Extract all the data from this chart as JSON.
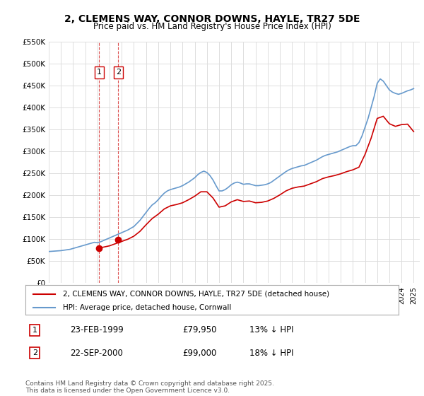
{
  "title": "2, CLEMENS WAY, CONNOR DOWNS, HAYLE, TR27 5DE",
  "subtitle": "Price paid vs. HM Land Registry's House Price Index (HPI)",
  "legend_line1": "2, CLEMENS WAY, CONNOR DOWNS, HAYLE, TR27 5DE (detached house)",
  "legend_line2": "HPI: Average price, detached house, Cornwall",
  "footer": "Contains HM Land Registry data © Crown copyright and database right 2025.\nThis data is licensed under the Open Government Licence v3.0.",
  "transactions": [
    {
      "num": 1,
      "date": "23-FEB-1999",
      "price": 79950,
      "hpi_rel": "13% ↓ HPI"
    },
    {
      "num": 2,
      "date": "22-SEP-2000",
      "price": 99000,
      "hpi_rel": "18% ↓ HPI"
    }
  ],
  "property_color": "#cc0000",
  "hpi_color": "#6699cc",
  "transaction_marker_color": "#cc0000",
  "vline_color": "#cc0000",
  "background_color": "#ffffff",
  "grid_color": "#dddddd",
  "ylim": [
    0,
    550000
  ],
  "yticks": [
    0,
    50000,
    100000,
    150000,
    200000,
    250000,
    300000,
    350000,
    400000,
    450000,
    500000,
    550000
  ],
  "ytick_labels": [
    "£0",
    "£50K",
    "£100K",
    "£150K",
    "£200K",
    "£250K",
    "£300K",
    "£350K",
    "£400K",
    "£450K",
    "£500K",
    "£550K"
  ],
  "hpi_data": {
    "years": [
      1995.0,
      1995.25,
      1995.5,
      1995.75,
      1996.0,
      1996.25,
      1996.5,
      1996.75,
      1997.0,
      1997.25,
      1997.5,
      1997.75,
      1998.0,
      1998.25,
      1998.5,
      1998.75,
      1999.0,
      1999.25,
      1999.5,
      1999.75,
      2000.0,
      2000.25,
      2000.5,
      2000.75,
      2001.0,
      2001.25,
      2001.5,
      2001.75,
      2002.0,
      2002.25,
      2002.5,
      2002.75,
      2003.0,
      2003.25,
      2003.5,
      2003.75,
      2004.0,
      2004.25,
      2004.5,
      2004.75,
      2005.0,
      2005.25,
      2005.5,
      2005.75,
      2006.0,
      2006.25,
      2006.5,
      2006.75,
      2007.0,
      2007.25,
      2007.5,
      2007.75,
      2008.0,
      2008.25,
      2008.5,
      2008.75,
      2009.0,
      2009.25,
      2009.5,
      2009.75,
      2010.0,
      2010.25,
      2010.5,
      2010.75,
      2011.0,
      2011.25,
      2011.5,
      2011.75,
      2012.0,
      2012.25,
      2012.5,
      2012.75,
      2013.0,
      2013.25,
      2013.5,
      2013.75,
      2014.0,
      2014.25,
      2014.5,
      2014.75,
      2015.0,
      2015.25,
      2015.5,
      2015.75,
      2016.0,
      2016.25,
      2016.5,
      2016.75,
      2017.0,
      2017.25,
      2017.5,
      2017.75,
      2018.0,
      2018.25,
      2018.5,
      2018.75,
      2019.0,
      2019.25,
      2019.5,
      2019.75,
      2020.0,
      2020.25,
      2020.5,
      2020.75,
      2021.0,
      2021.25,
      2021.5,
      2021.75,
      2022.0,
      2022.25,
      2022.5,
      2022.75,
      2023.0,
      2023.25,
      2023.5,
      2023.75,
      2024.0,
      2024.25,
      2024.5,
      2024.75,
      2025.0
    ],
    "values": [
      72000,
      72500,
      73000,
      73500,
      74000,
      75000,
      76000,
      77000,
      79000,
      81000,
      83000,
      85000,
      87000,
      89000,
      91000,
      93000,
      92000,
      94000,
      97000,
      100000,
      103000,
      106000,
      109000,
      112000,
      115000,
      118000,
      121000,
      125000,
      129000,
      136000,
      143000,
      152000,
      161000,
      170000,
      178000,
      183000,
      190000,
      198000,
      205000,
      210000,
      213000,
      215000,
      217000,
      219000,
      222000,
      226000,
      230000,
      235000,
      240000,
      247000,
      252000,
      255000,
      252000,
      245000,
      235000,
      222000,
      210000,
      210000,
      213000,
      218000,
      224000,
      228000,
      230000,
      228000,
      225000,
      226000,
      226000,
      224000,
      222000,
      222000,
      223000,
      224000,
      226000,
      229000,
      234000,
      239000,
      244000,
      249000,
      254000,
      258000,
      261000,
      263000,
      265000,
      267000,
      268000,
      271000,
      274000,
      277000,
      280000,
      284000,
      288000,
      291000,
      293000,
      295000,
      297000,
      299000,
      302000,
      305000,
      308000,
      311000,
      313000,
      313000,
      320000,
      335000,
      355000,
      375000,
      400000,
      425000,
      455000,
      465000,
      460000,
      450000,
      440000,
      435000,
      432000,
      430000,
      432000,
      435000,
      438000,
      440000,
      443000
    ]
  },
  "property_data": {
    "years": [
      1999.15,
      2000.72
    ],
    "values": [
      79950,
      99000
    ]
  },
  "property_hpi_indexed": {
    "years": [
      1999.15,
      1999.5,
      2000.0,
      2000.25,
      2000.5,
      2000.72,
      2001.0,
      2001.5,
      2002.0,
      2002.5,
      2003.0,
      2003.5,
      2004.0,
      2004.5,
      2005.0,
      2005.5,
      2006.0,
      2006.5,
      2007.0,
      2007.5,
      2008.0,
      2008.5,
      2009.0,
      2009.5,
      2010.0,
      2010.5,
      2011.0,
      2011.5,
      2012.0,
      2012.5,
      2013.0,
      2013.5,
      2014.0,
      2014.5,
      2015.0,
      2015.5,
      2016.0,
      2016.5,
      2017.0,
      2017.5,
      2018.0,
      2018.5,
      2019.0,
      2019.5,
      2020.0,
      2020.5,
      2021.0,
      2021.5,
      2022.0,
      2022.5,
      2023.0,
      2023.5,
      2024.0,
      2024.5,
      2025.0
    ],
    "values": [
      79950,
      82000,
      85000,
      87500,
      90000,
      92500,
      95000,
      100000,
      107000,
      118000,
      133000,
      147000,
      157000,
      169000,
      176000,
      179000,
      183000,
      190000,
      198000,
      208000,
      208000,
      194000,
      173000,
      176000,
      185000,
      190000,
      186000,
      187000,
      183000,
      184000,
      187000,
      193000,
      201000,
      210000,
      216000,
      219000,
      221000,
      226000,
      231000,
      238000,
      242000,
      245000,
      249000,
      254000,
      258000,
      264000,
      293000,
      330000,
      375000,
      380000,
      363000,
      357000,
      361000,
      362000,
      345000
    ]
  }
}
